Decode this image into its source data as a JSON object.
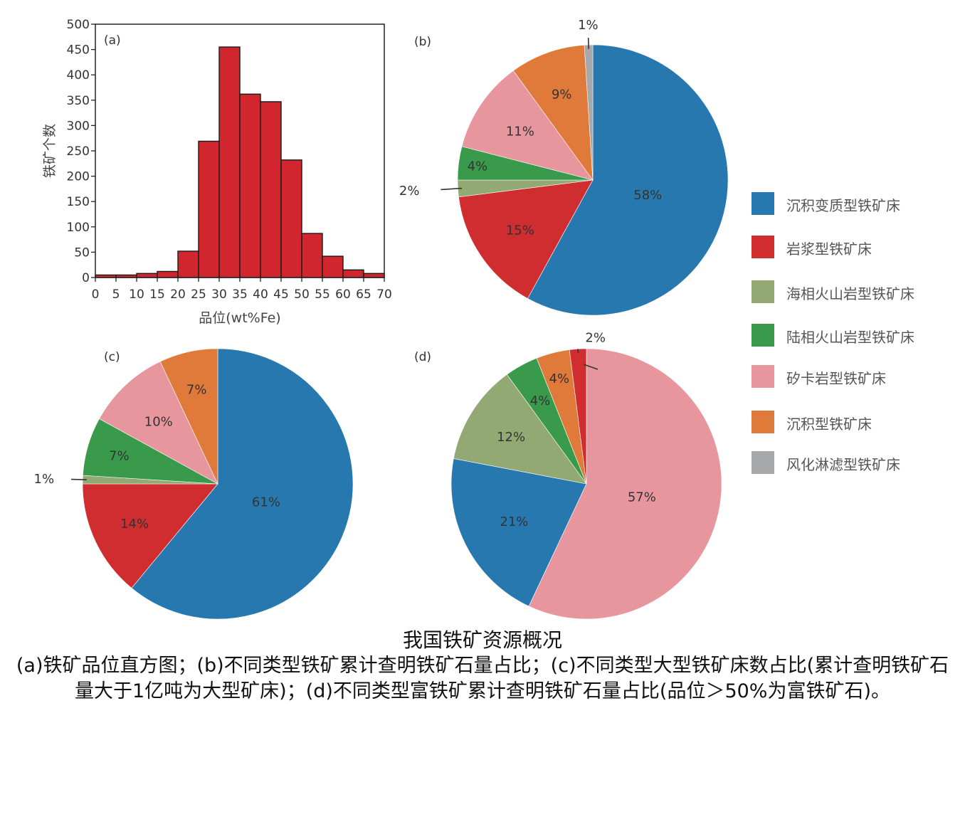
{
  "colors": {
    "sedimentary_metamorphic": "#2878b0",
    "magmatic": "#cf2d2f",
    "marine_volcanic": "#93a973",
    "continental_volcanic": "#3a9a4c",
    "skarn": "#e8969d",
    "sedimentary": "#e07a3a",
    "weathering_leaching": "#a7a8aa",
    "histogram_bar": "#d1262d"
  },
  "legend": [
    {
      "label": "沉积变质型铁矿床",
      "color": "#2878b0"
    },
    {
      "label": "岩浆型铁矿床",
      "color": "#cf2d2f"
    },
    {
      "label": "海相火山岩型铁矿床",
      "color": "#93a973"
    },
    {
      "label": "陆相火山岩型铁矿床",
      "color": "#3a9a4c"
    },
    {
      "label": "矽卡岩型铁矿床",
      "color": "#e8969d"
    },
    {
      "label": "沉积型铁矿床",
      "color": "#e07a3a"
    },
    {
      "label": "风化淋滤型铁矿床",
      "color": "#a7a8aa"
    }
  ],
  "caption": {
    "title": "我国铁矿资源概况",
    "body": "(a)铁矿品位直方图；(b)不同类型铁矿累计查明铁矿石量占比；(c)不同类型大型铁矿床数占比(累计查明铁矿石量大于1亿吨为大型矿床)；(d)不同类型富铁矿累计查明铁矿石量占比(品位＞50%为富铁矿石)。"
  },
  "chart_data": [
    {
      "panel": "(a)",
      "type": "bar",
      "xlabel": "品位(wt%Fe)",
      "ylabel": "铁矿个数",
      "bin_edges": [
        0,
        5,
        10,
        15,
        20,
        25,
        30,
        35,
        40,
        45,
        50,
        55,
        60,
        65,
        70
      ],
      "values": [
        5,
        5,
        8,
        12,
        52,
        269,
        455,
        362,
        347,
        232,
        87,
        42,
        15,
        8
      ],
      "xlim": [
        0,
        70
      ],
      "ylim": [
        0,
        500
      ],
      "xticks": [
        0,
        5,
        10,
        15,
        20,
        25,
        30,
        35,
        40,
        45,
        50,
        55,
        60,
        65,
        70
      ],
      "yticks": [
        0,
        50,
        100,
        150,
        200,
        250,
        300,
        350,
        400,
        450,
        500
      ]
    },
    {
      "panel": "(b)",
      "type": "pie",
      "slices": [
        {
          "label": "沉积变质型铁矿床",
          "value": 58,
          "text": "58%"
        },
        {
          "label": "岩浆型铁矿床",
          "value": 15,
          "text": "15%"
        },
        {
          "label": "海相火山岩型铁矿床",
          "value": 2,
          "text": "2%"
        },
        {
          "label": "陆相火山岩型铁矿床",
          "value": 4,
          "text": "4%"
        },
        {
          "label": "矽卡岩型铁矿床",
          "value": 11,
          "text": "11%"
        },
        {
          "label": "沉积型铁矿床",
          "value": 9,
          "text": "9%"
        },
        {
          "label": "风化淋滤型铁矿床",
          "value": 1,
          "text": "1%"
        }
      ]
    },
    {
      "panel": "(c)",
      "type": "pie",
      "slices": [
        {
          "label": "沉积变质型铁矿床",
          "value": 61,
          "text": "61%"
        },
        {
          "label": "岩浆型铁矿床",
          "value": 14,
          "text": "14%"
        },
        {
          "label": "海相火山岩型铁矿床",
          "value": 1,
          "text": "1%"
        },
        {
          "label": "陆相火山岩型铁矿床",
          "value": 7,
          "text": "7%"
        },
        {
          "label": "矽卡岩型铁矿床",
          "value": 10,
          "text": "10%"
        },
        {
          "label": "沉积型铁矿床",
          "value": 7,
          "text": "7%"
        }
      ]
    },
    {
      "panel": "(d)",
      "type": "pie",
      "slices": [
        {
          "label": "矽卡岩型铁矿床",
          "value": 57,
          "text": "57%"
        },
        {
          "label": "沉积变质型铁矿床",
          "value": 21,
          "text": "21%"
        },
        {
          "label": "海相火山岩型铁矿床",
          "value": 12,
          "text": "12%"
        },
        {
          "label": "陆相火山岩型铁矿床",
          "value": 4,
          "text": "4%"
        },
        {
          "label": "沉积型铁矿床",
          "value": 4,
          "text": "4%"
        },
        {
          "label": "岩浆型铁矿床",
          "value": 2,
          "text": "2%"
        }
      ]
    }
  ]
}
